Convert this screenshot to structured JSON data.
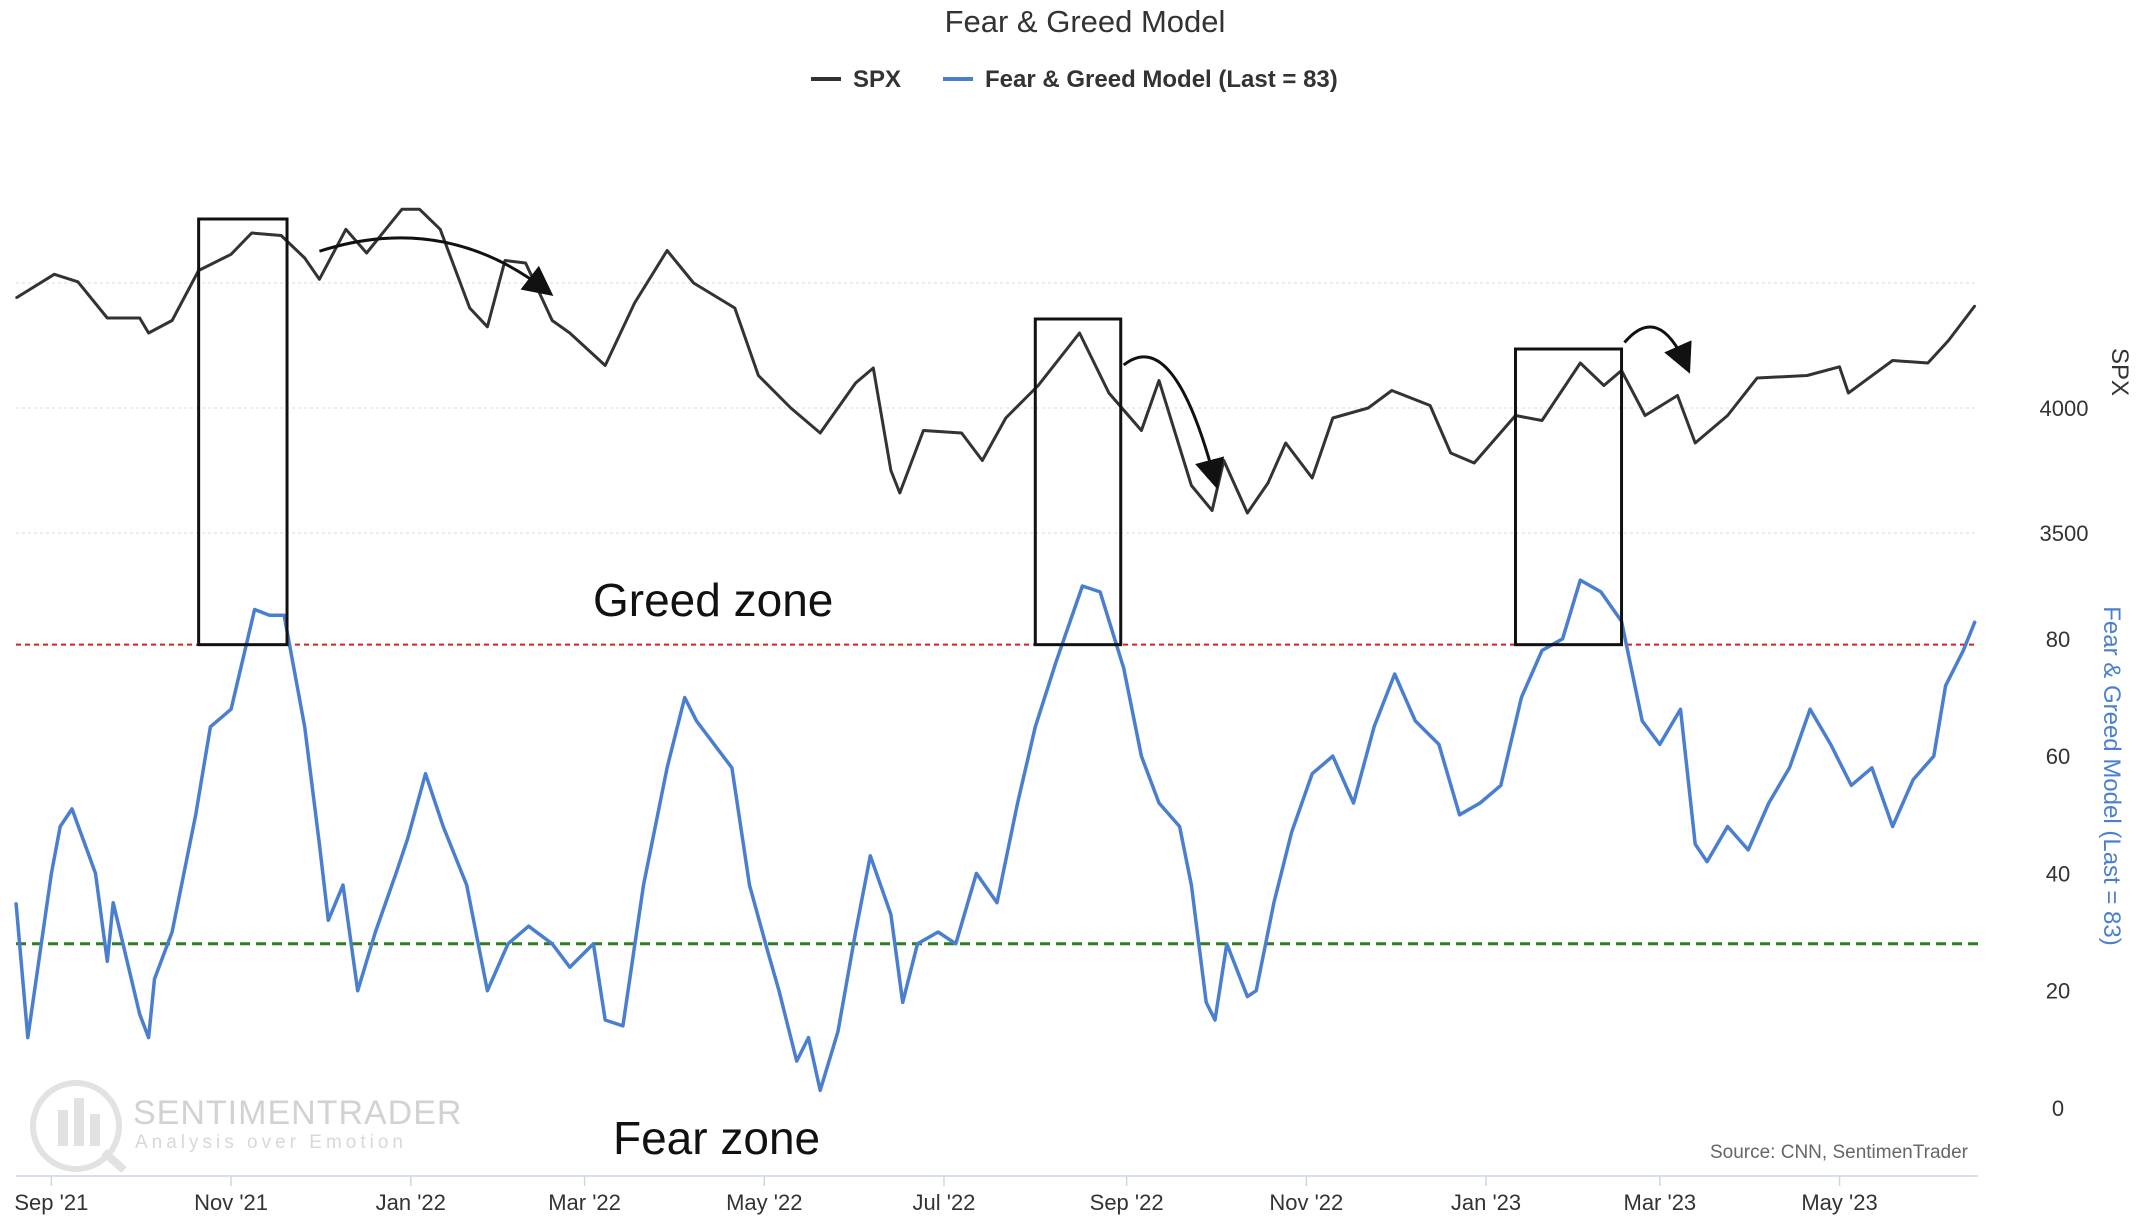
{
  "title": "Fear & Greed Model",
  "legend": [
    {
      "label": "SPX",
      "color": "#333333"
    },
    {
      "label": "Fear & Greed Model (Last = 83)",
      "color": "#4a7fd0"
    }
  ],
  "annotations": {
    "greed_zone": "Greed zone",
    "fear_zone": "Fear zone",
    "source": "Source: CNN, SentimenTrader",
    "watermark_title": "SENTIMENTRADER",
    "watermark_subtitle": "Analysis over Emotion",
    "greed_threshold": 79,
    "fear_threshold": 28,
    "highlight_windows": [
      {
        "start": "2021-10-21",
        "end": "2021-11-20"
      },
      {
        "start": "2022-08-01",
        "end": "2022-08-30"
      },
      {
        "start": "2023-01-11",
        "end": "2023-02-16"
      }
    ],
    "arrows": [
      {
        "from": "2021-12-01",
        "to": "2022-02-16"
      },
      {
        "from": "2022-08-31",
        "to": "2022-10-01"
      },
      {
        "from": "2023-02-17",
        "to": "2023-03-10"
      }
    ]
  },
  "chart_data": {
    "type": "line",
    "title": "Fear & Greed Model",
    "x_range": [
      "2021-08-20",
      "2023-06-17"
    ],
    "x_ticks": [
      {
        "date": "2021-09-01",
        "label": "Sep '21"
      },
      {
        "date": "2021-11-01",
        "label": "Nov '21"
      },
      {
        "date": "2022-01-01",
        "label": "Jan '22"
      },
      {
        "date": "2022-03-01",
        "label": "Mar '22"
      },
      {
        "date": "2022-05-01",
        "label": "May '22"
      },
      {
        "date": "2022-07-01",
        "label": "Jul '22"
      },
      {
        "date": "2022-09-01",
        "label": "Sep '22"
      },
      {
        "date": "2022-11-01",
        "label": "Nov '22"
      },
      {
        "date": "2023-01-01",
        "label": "Jan '23"
      },
      {
        "date": "2023-03-01",
        "label": "Mar '23"
      },
      {
        "date": "2023-05-01",
        "label": "May '23"
      }
    ],
    "y_axes": {
      "spx": {
        "label": "SPX",
        "ticks": [
          3500,
          4000
        ],
        "range": [
          3300,
          4800
        ],
        "gridlines": [
          3500,
          4000,
          4500
        ]
      },
      "fear_greed": {
        "label": "Fear & Greed Model (Last = 83)",
        "ticks": [
          0,
          20,
          40,
          60,
          80
        ],
        "range": [
          0,
          100
        ]
      }
    },
    "series": [
      {
        "name": "SPX",
        "axis": "spx",
        "color": "#333333",
        "points": [
          [
            "2021-08-20",
            4440
          ],
          [
            "2021-09-02",
            4535
          ],
          [
            "2021-09-10",
            4505
          ],
          [
            "2021-09-20",
            4360
          ],
          [
            "2021-10-01",
            4360
          ],
          [
            "2021-10-04",
            4300
          ],
          [
            "2021-10-12",
            4350
          ],
          [
            "2021-10-21",
            4550
          ],
          [
            "2021-11-01",
            4615
          ],
          [
            "2021-11-08",
            4700
          ],
          [
            "2021-11-18",
            4690
          ],
          [
            "2021-11-26",
            4600
          ],
          [
            "2021-12-01",
            4515
          ],
          [
            "2021-12-10",
            4715
          ],
          [
            "2021-12-17",
            4620
          ],
          [
            "2021-12-29",
            4795
          ],
          [
            "2022-01-04",
            4795
          ],
          [
            "2022-01-11",
            4715
          ],
          [
            "2022-01-21",
            4400
          ],
          [
            "2022-01-27",
            4325
          ],
          [
            "2022-02-02",
            4590
          ],
          [
            "2022-02-09",
            4580
          ],
          [
            "2022-02-18",
            4350
          ],
          [
            "2022-02-24",
            4300
          ],
          [
            "2022-03-08",
            4170
          ],
          [
            "2022-03-18",
            4420
          ],
          [
            "2022-03-29",
            4630
          ],
          [
            "2022-04-07",
            4500
          ],
          [
            "2022-04-21",
            4400
          ],
          [
            "2022-04-29",
            4130
          ],
          [
            "2022-05-10",
            4000
          ],
          [
            "2022-05-20",
            3900
          ],
          [
            "2022-06-01",
            4100
          ],
          [
            "2022-06-07",
            4160
          ],
          [
            "2022-06-13",
            3750
          ],
          [
            "2022-06-16",
            3660
          ],
          [
            "2022-06-24",
            3910
          ],
          [
            "2022-07-07",
            3900
          ],
          [
            "2022-07-14",
            3790
          ],
          [
            "2022-07-22",
            3960
          ],
          [
            "2022-08-02",
            4090
          ],
          [
            "2022-08-16",
            4300
          ],
          [
            "2022-08-26",
            4060
          ],
          [
            "2022-09-06",
            3910
          ],
          [
            "2022-09-12",
            4110
          ],
          [
            "2022-09-23",
            3690
          ],
          [
            "2022-09-30",
            3590
          ],
          [
            "2022-10-04",
            3790
          ],
          [
            "2022-10-12",
            3580
          ],
          [
            "2022-10-19",
            3700
          ],
          [
            "2022-10-25",
            3860
          ],
          [
            "2022-11-03",
            3720
          ],
          [
            "2022-11-10",
            3960
          ],
          [
            "2022-11-22",
            4000
          ],
          [
            "2022-11-30",
            4070
          ],
          [
            "2022-12-13",
            4010
          ],
          [
            "2022-12-20",
            3820
          ],
          [
            "2022-12-28",
            3780
          ],
          [
            "2023-01-11",
            3970
          ],
          [
            "2023-01-20",
            3950
          ],
          [
            "2023-02-02",
            4180
          ],
          [
            "2023-02-10",
            4090
          ],
          [
            "2023-02-16",
            4150
          ],
          [
            "2023-02-24",
            3970
          ],
          [
            "2023-03-07",
            4050
          ],
          [
            "2023-03-13",
            3860
          ],
          [
            "2023-03-24",
            3970
          ],
          [
            "2023-04-03",
            4120
          ],
          [
            "2023-04-20",
            4130
          ],
          [
            "2023-05-01",
            4165
          ],
          [
            "2023-05-04",
            4060
          ],
          [
            "2023-05-19",
            4190
          ],
          [
            "2023-05-31",
            4180
          ],
          [
            "2023-06-07",
            4270
          ],
          [
            "2023-06-16",
            4410
          ]
        ]
      },
      {
        "name": "Fear & Greed Model (Last = 83)",
        "axis": "fear_greed",
        "color": "#4a7fd0",
        "points": [
          [
            "2021-08-20",
            35
          ],
          [
            "2021-08-24",
            12
          ],
          [
            "2021-09-01",
            40
          ],
          [
            "2021-09-04",
            48
          ],
          [
            "2021-09-08",
            51
          ],
          [
            "2021-09-16",
            40
          ],
          [
            "2021-09-20",
            25
          ],
          [
            "2021-09-22",
            35
          ],
          [
            "2021-10-01",
            16
          ],
          [
            "2021-10-04",
            12
          ],
          [
            "2021-10-06",
            22
          ],
          [
            "2021-10-12",
            30
          ],
          [
            "2021-10-20",
            50
          ],
          [
            "2021-10-25",
            65
          ],
          [
            "2021-11-01",
            68
          ],
          [
            "2021-11-09",
            85
          ],
          [
            "2021-11-14",
            84
          ],
          [
            "2021-11-19",
            84
          ],
          [
            "2021-11-26",
            65
          ],
          [
            "2021-12-01",
            45
          ],
          [
            "2021-12-04",
            32
          ],
          [
            "2021-12-09",
            38
          ],
          [
            "2021-12-14",
            20
          ],
          [
            "2021-12-20",
            30
          ],
          [
            "2021-12-27",
            40
          ],
          [
            "2021-12-31",
            46
          ],
          [
            "2022-01-06",
            57
          ],
          [
            "2022-01-12",
            48
          ],
          [
            "2022-01-20",
            38
          ],
          [
            "2022-01-27",
            20
          ],
          [
            "2022-02-03",
            28
          ],
          [
            "2022-02-10",
            31
          ],
          [
            "2022-02-18",
            28
          ],
          [
            "2022-02-24",
            24
          ],
          [
            "2022-03-04",
            28
          ],
          [
            "2022-03-08",
            15
          ],
          [
            "2022-03-14",
            14
          ],
          [
            "2022-03-21",
            38
          ],
          [
            "2022-03-29",
            58
          ],
          [
            "2022-04-04",
            70
          ],
          [
            "2022-04-08",
            66
          ],
          [
            "2022-04-14",
            62
          ],
          [
            "2022-04-20",
            58
          ],
          [
            "2022-04-26",
            38
          ],
          [
            "2022-05-02",
            27
          ],
          [
            "2022-05-06",
            20
          ],
          [
            "2022-05-12",
            8
          ],
          [
            "2022-05-16",
            12
          ],
          [
            "2022-05-20",
            3
          ],
          [
            "2022-05-26",
            13
          ],
          [
            "2022-06-01",
            30
          ],
          [
            "2022-06-06",
            43
          ],
          [
            "2022-06-13",
            33
          ],
          [
            "2022-06-17",
            18
          ],
          [
            "2022-06-22",
            28
          ],
          [
            "2022-06-29",
            30
          ],
          [
            "2022-07-05",
            28
          ],
          [
            "2022-07-12",
            40
          ],
          [
            "2022-07-19",
            35
          ],
          [
            "2022-07-26",
            52
          ],
          [
            "2022-08-01",
            65
          ],
          [
            "2022-08-08",
            76
          ],
          [
            "2022-08-17",
            89
          ],
          [
            "2022-08-23",
            88
          ],
          [
            "2022-08-31",
            75
          ],
          [
            "2022-09-06",
            60
          ],
          [
            "2022-09-12",
            52
          ],
          [
            "2022-09-19",
            48
          ],
          [
            "2022-09-23",
            38
          ],
          [
            "2022-09-28",
            18
          ],
          [
            "2022-10-01",
            15
          ],
          [
            "2022-10-05",
            28
          ],
          [
            "2022-10-12",
            19
          ],
          [
            "2022-10-15",
            20
          ],
          [
            "2022-10-21",
            35
          ],
          [
            "2022-10-27",
            47
          ],
          [
            "2022-11-03",
            57
          ],
          [
            "2022-11-10",
            60
          ],
          [
            "2022-11-17",
            52
          ],
          [
            "2022-11-24",
            65
          ],
          [
            "2022-12-01",
            74
          ],
          [
            "2022-12-08",
            66
          ],
          [
            "2022-12-16",
            62
          ],
          [
            "2022-12-23",
            50
          ],
          [
            "2022-12-30",
            52
          ],
          [
            "2023-01-06",
            55
          ],
          [
            "2023-01-13",
            70
          ],
          [
            "2023-01-20",
            78
          ],
          [
            "2023-01-27",
            80
          ],
          [
            "2023-02-02",
            90
          ],
          [
            "2023-02-09",
            88
          ],
          [
            "2023-02-16",
            83
          ],
          [
            "2023-02-23",
            66
          ],
          [
            "2023-03-01",
            62
          ],
          [
            "2023-03-08",
            68
          ],
          [
            "2023-03-13",
            45
          ],
          [
            "2023-03-17",
            42
          ],
          [
            "2023-03-24",
            48
          ],
          [
            "2023-03-31",
            44
          ],
          [
            "2023-04-07",
            52
          ],
          [
            "2023-04-14",
            58
          ],
          [
            "2023-04-21",
            68
          ],
          [
            "2023-04-28",
            62
          ],
          [
            "2023-05-05",
            55
          ],
          [
            "2023-05-12",
            58
          ],
          [
            "2023-05-19",
            48
          ],
          [
            "2023-05-26",
            56
          ],
          [
            "2023-06-02",
            60
          ],
          [
            "2023-06-06",
            72
          ],
          [
            "2023-06-12",
            78
          ],
          [
            "2023-06-16",
            83
          ]
        ]
      }
    ]
  }
}
